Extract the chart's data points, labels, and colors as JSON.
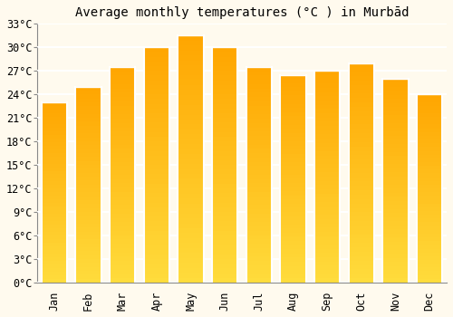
{
  "title": "Average monthly temperatures (°C ) in Murbād",
  "months": [
    "Jan",
    "Feb",
    "Mar",
    "Apr",
    "May",
    "Jun",
    "Jul",
    "Aug",
    "Sep",
    "Oct",
    "Nov",
    "Dec"
  ],
  "values": [
    23,
    25,
    27.5,
    30,
    31.5,
    30,
    27.5,
    26.5,
    27,
    28,
    26,
    24
  ],
  "bar_color_top": "#FFA500",
  "bar_color_bottom": "#FFD060",
  "bar_edge_color": "#FFFFFF",
  "ylim": [
    0,
    33
  ],
  "yticks": [
    0,
    3,
    6,
    9,
    12,
    15,
    18,
    21,
    24,
    27,
    30,
    33
  ],
  "background_color": "#FFFAEE",
  "grid_color": "#FFFFFF",
  "title_fontsize": 10,
  "tick_fontsize": 8.5,
  "bar_width": 0.75
}
